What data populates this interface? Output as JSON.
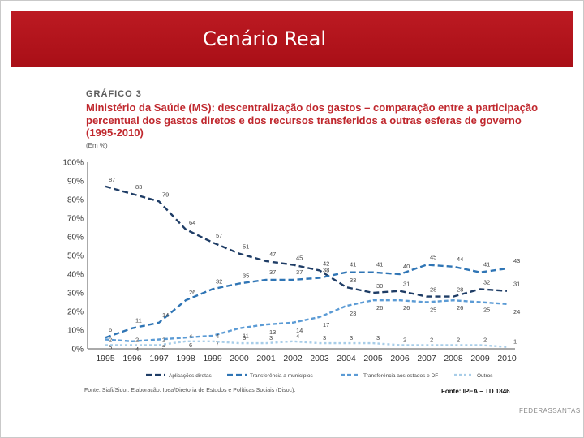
{
  "slide": {
    "title": "Cenário Real",
    "footer_brand": "FEDERASSANTAS"
  },
  "colors": {
    "title_bar": "#b3141b",
    "figure_title": "#c0282e",
    "series_dark": "#1f3d66",
    "series_mid": "#2f75b5",
    "series_light": "#5b9bd5",
    "series_pale": "#a8cde8"
  },
  "figure": {
    "kicker": "GRÁFICO 3",
    "title": "Ministério da Saúde (MS): descentralização dos gastos – comparação entre a participação percentual dos gastos diretos e dos recursos transferidos a outras esferas de governo (1995-2010)",
    "unit": "(Em %)",
    "source": "Fonte: Siafi/Sidor. Elaboração: Ipea/Diretoria de Estudos e Políticas Sociais (Disoc).",
    "credit": "Fonte: IPEA – TD 1846"
  },
  "chart_data": {
    "type": "line",
    "x": [
      "1995",
      "1996",
      "1997",
      "1998",
      "1999",
      "2000",
      "2001",
      "2002",
      "2003",
      "2004",
      "2005",
      "2006",
      "2007",
      "2008",
      "2009",
      "2010"
    ],
    "ylim": [
      0,
      100
    ],
    "yticks": [
      "0%",
      "10%",
      "20%",
      "30%",
      "40%",
      "50%",
      "60%",
      "70%",
      "80%",
      "90%",
      "100%"
    ],
    "grid": false,
    "legend_position": "bottom",
    "series": [
      {
        "name": "Aplicações diretas",
        "color": "#1f3d66",
        "dash": "long",
        "values": [
          87,
          83,
          79,
          64,
          57,
          51,
          47,
          45,
          42,
          33,
          30,
          31,
          28,
          28,
          32,
          31
        ],
        "labels": [
          "87",
          "83",
          "79",
          "64",
          "57",
          "51",
          "47",
          "45",
          "42",
          "33",
          "30",
          "31",
          "28",
          "28",
          "32",
          "31"
        ]
      },
      {
        "name": "Transferência a municípios",
        "color": "#2f75b5",
        "dash": "long",
        "values": [
          6,
          11,
          14,
          26,
          32,
          35,
          37,
          37,
          38,
          41,
          41,
          40,
          45,
          44,
          41,
          43
        ],
        "labels": [
          "6",
          "11",
          "14",
          "26",
          "32",
          "35",
          "37",
          "37",
          "38",
          "41",
          "41",
          "40",
          "45",
          "44",
          "41",
          "43"
        ]
      },
      {
        "name": "Transferência aos estados e DF",
        "color": "#5b9bd5",
        "dash": "medium",
        "values": [
          5,
          4,
          5,
          6,
          7,
          11,
          13,
          14,
          17,
          23,
          26,
          26,
          25,
          26,
          25,
          24
        ],
        "labels": [
          "5",
          "4",
          "5",
          "6",
          "7",
          "11",
          "13",
          "14",
          "17",
          "23",
          "26",
          "26",
          "25",
          "26",
          "25",
          "24"
        ]
      },
      {
        "name": "Outros",
        "color": "#a8cde8",
        "dash": "short",
        "values": [
          2,
          2,
          2,
          4,
          4,
          3,
          3,
          4,
          3,
          3,
          3,
          2,
          2,
          2,
          2,
          1
        ],
        "labels": [
          "2",
          "2",
          "2",
          "4",
          "4",
          "3",
          "3",
          "4",
          "3",
          "3",
          "3",
          "2",
          "2",
          "2",
          "2",
          "1"
        ]
      }
    ]
  }
}
